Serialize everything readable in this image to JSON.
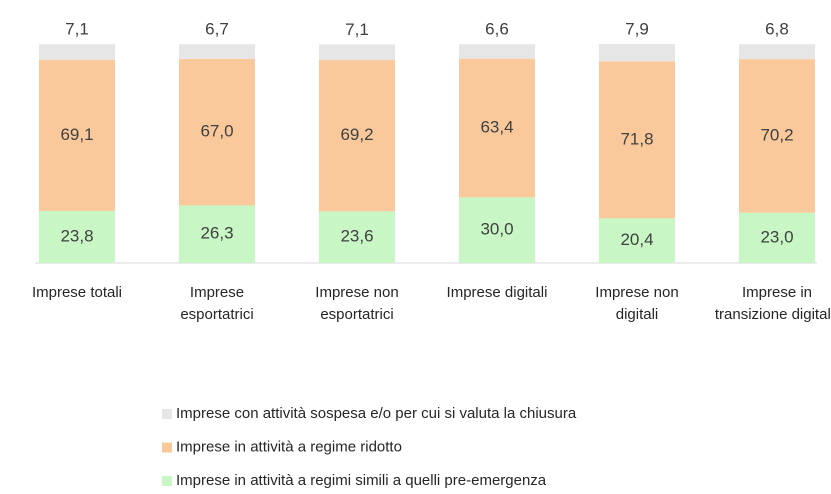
{
  "chart_data": {
    "type": "stacked_bar",
    "categories": [
      "Imprese totali",
      "Imprese esportatrici",
      "Imprese non esportatrici",
      "Imprese digitali",
      "Imprese non digitali",
      "Imprese in transizione digitale"
    ],
    "series": [
      {
        "name": "Imprese con attività sospesa e/o per cui si valuta la chiusura",
        "color": "#e6e6e6",
        "values": [
          7.1,
          6.7,
          7.1,
          6.6,
          7.9,
          6.8
        ],
        "value_labels": [
          "7,1",
          "6,7",
          "7,1",
          "6,6",
          "7,9",
          "6,8"
        ]
      },
      {
        "name": "Imprese in attività a regime ridotto",
        "color": "#f9c99b",
        "values": [
          69.1,
          67.0,
          69.2,
          63.4,
          71.8,
          70.2
        ],
        "value_labels": [
          "69,1",
          "67,0",
          "69,2",
          "63,4",
          "71,8",
          "70,2"
        ]
      },
      {
        "name": "Imprese in attività a regimi simili a quelli pre-emergenza",
        "color": "#c8f7c5",
        "values": [
          23.8,
          26.3,
          23.6,
          30.0,
          20.4,
          23.0
        ],
        "value_labels": [
          "23,8",
          "26,3",
          "23,6",
          "30,0",
          "20,4",
          "23,0"
        ]
      }
    ]
  }
}
